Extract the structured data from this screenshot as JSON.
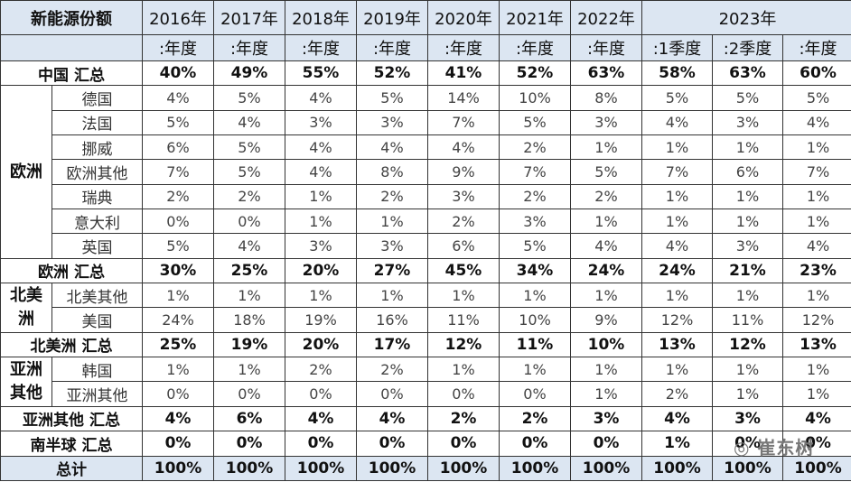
{
  "header": {
    "title": "新能源份额",
    "years": [
      "2016年",
      "2017年",
      "2018年",
      "2019年",
      "2020年",
      "2021年",
      "2022年",
      "2023年"
    ],
    "periods": [
      ":年度",
      ":年度",
      ":年度",
      ":年度",
      ":年度",
      ":年度",
      ":年度",
      ":1季度",
      ":2季度",
      ":年度"
    ]
  },
  "body": [
    {
      "summary": "中国 汇总",
      "values": [
        "40%",
        "49%",
        "55%",
        "52%",
        "41%",
        "52%",
        "63%",
        "58%",
        "63%",
        "60%"
      ]
    },
    {
      "group": "欧洲",
      "items": [
        {
          "label": "德国",
          "values": [
            "4%",
            "5%",
            "4%",
            "5%",
            "14%",
            "10%",
            "8%",
            "5%",
            "5%",
            "5%"
          ]
        },
        {
          "label": "法国",
          "values": [
            "5%",
            "4%",
            "3%",
            "3%",
            "7%",
            "5%",
            "3%",
            "4%",
            "3%",
            "4%"
          ]
        },
        {
          "label": "挪威",
          "values": [
            "6%",
            "5%",
            "4%",
            "4%",
            "4%",
            "2%",
            "1%",
            "1%",
            "1%",
            "1%"
          ]
        },
        {
          "label": "欧洲其他",
          "values": [
            "7%",
            "5%",
            "4%",
            "8%",
            "9%",
            "7%",
            "5%",
            "7%",
            "6%",
            "7%"
          ]
        },
        {
          "label": "瑞典",
          "values": [
            "2%",
            "2%",
            "1%",
            "2%",
            "3%",
            "2%",
            "2%",
            "1%",
            "1%",
            "1%"
          ]
        },
        {
          "label": "意大利",
          "values": [
            "0%",
            "0%",
            "1%",
            "1%",
            "2%",
            "3%",
            "1%",
            "1%",
            "1%",
            "1%"
          ]
        },
        {
          "label": "英国",
          "values": [
            "5%",
            "4%",
            "3%",
            "3%",
            "6%",
            "5%",
            "4%",
            "4%",
            "3%",
            "4%"
          ]
        }
      ]
    },
    {
      "summary": "欧洲 汇总",
      "values": [
        "30%",
        "25%",
        "20%",
        "27%",
        "45%",
        "34%",
        "24%",
        "24%",
        "21%",
        "23%"
      ]
    },
    {
      "group": "北美洲",
      "items": [
        {
          "label": "北美其他",
          "values": [
            "1%",
            "1%",
            "1%",
            "1%",
            "1%",
            "1%",
            "1%",
            "1%",
            "1%",
            "1%"
          ]
        },
        {
          "label": "美国",
          "values": [
            "24%",
            "18%",
            "19%",
            "16%",
            "11%",
            "10%",
            "9%",
            "12%",
            "11%",
            "12%"
          ]
        }
      ]
    },
    {
      "summary": "北美洲 汇总",
      "values": [
        "25%",
        "19%",
        "20%",
        "17%",
        "12%",
        "11%",
        "10%",
        "13%",
        "12%",
        "13%"
      ]
    },
    {
      "group": "亚洲其他",
      "items": [
        {
          "label": "韩国",
          "values": [
            "1%",
            "1%",
            "2%",
            "2%",
            "1%",
            "1%",
            "1%",
            "1%",
            "1%",
            "1%"
          ]
        },
        {
          "label": "亚洲其他",
          "values": [
            "0%",
            "0%",
            "0%",
            "0%",
            "0%",
            "0%",
            "1%",
            "2%",
            "1%",
            "1%"
          ]
        }
      ]
    },
    {
      "summary": "亚洲其他 汇总",
      "values": [
        "4%",
        "6%",
        "4%",
        "4%",
        "2%",
        "2%",
        "3%",
        "4%",
        "3%",
        "4%"
      ]
    },
    {
      "summary": "南半球 汇总",
      "values": [
        "0%",
        "0%",
        "0%",
        "0%",
        "0%",
        "0%",
        "0%",
        "1%",
        "0%",
        "0%"
      ]
    },
    {
      "summary": "总计",
      "values": [
        "100%",
        "100%",
        "100%",
        "100%",
        "100%",
        "100%",
        "100%",
        "100%",
        "100%",
        "100%"
      ],
      "total": true
    }
  ],
  "watermark": "崔东树"
}
